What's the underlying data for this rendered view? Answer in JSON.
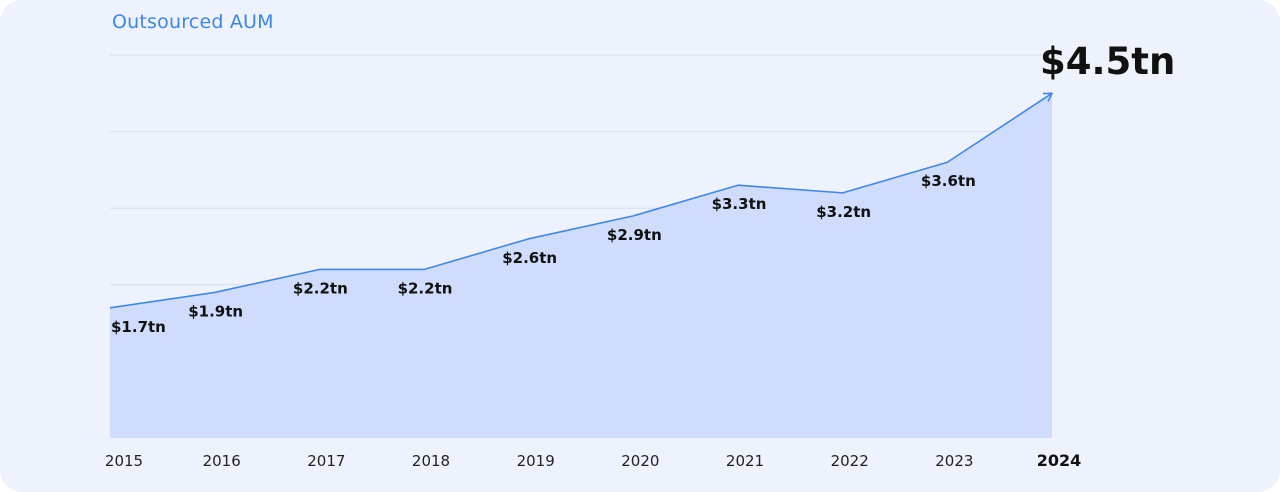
{
  "chart_data": {
    "type": "area",
    "title": "Outsourced AUM",
    "xlabel": "",
    "ylabel": "",
    "grid": true,
    "ylim": [
      0,
      5
    ],
    "categories": [
      "2015",
      "2016",
      "2017",
      "2018",
      "2019",
      "2020",
      "2021",
      "2022",
      "2023",
      "2024"
    ],
    "values": [
      1.7,
      1.9,
      2.2,
      2.2,
      2.6,
      2.9,
      3.3,
      3.2,
      3.6,
      4.5
    ],
    "data_labels": [
      "$1.7tn",
      "$1.9tn",
      "$2.2tn",
      "$2.2tn",
      "$2.6tn",
      "$2.9tn",
      "$3.3tn",
      "$3.2tn",
      "$3.6tn",
      "$4.5tn"
    ],
    "highlight_index": 9,
    "colors": {
      "line": "#3f88e6",
      "area": "#cfdcfb",
      "title": "#3b86e8",
      "background": "#eef2fc"
    }
  }
}
